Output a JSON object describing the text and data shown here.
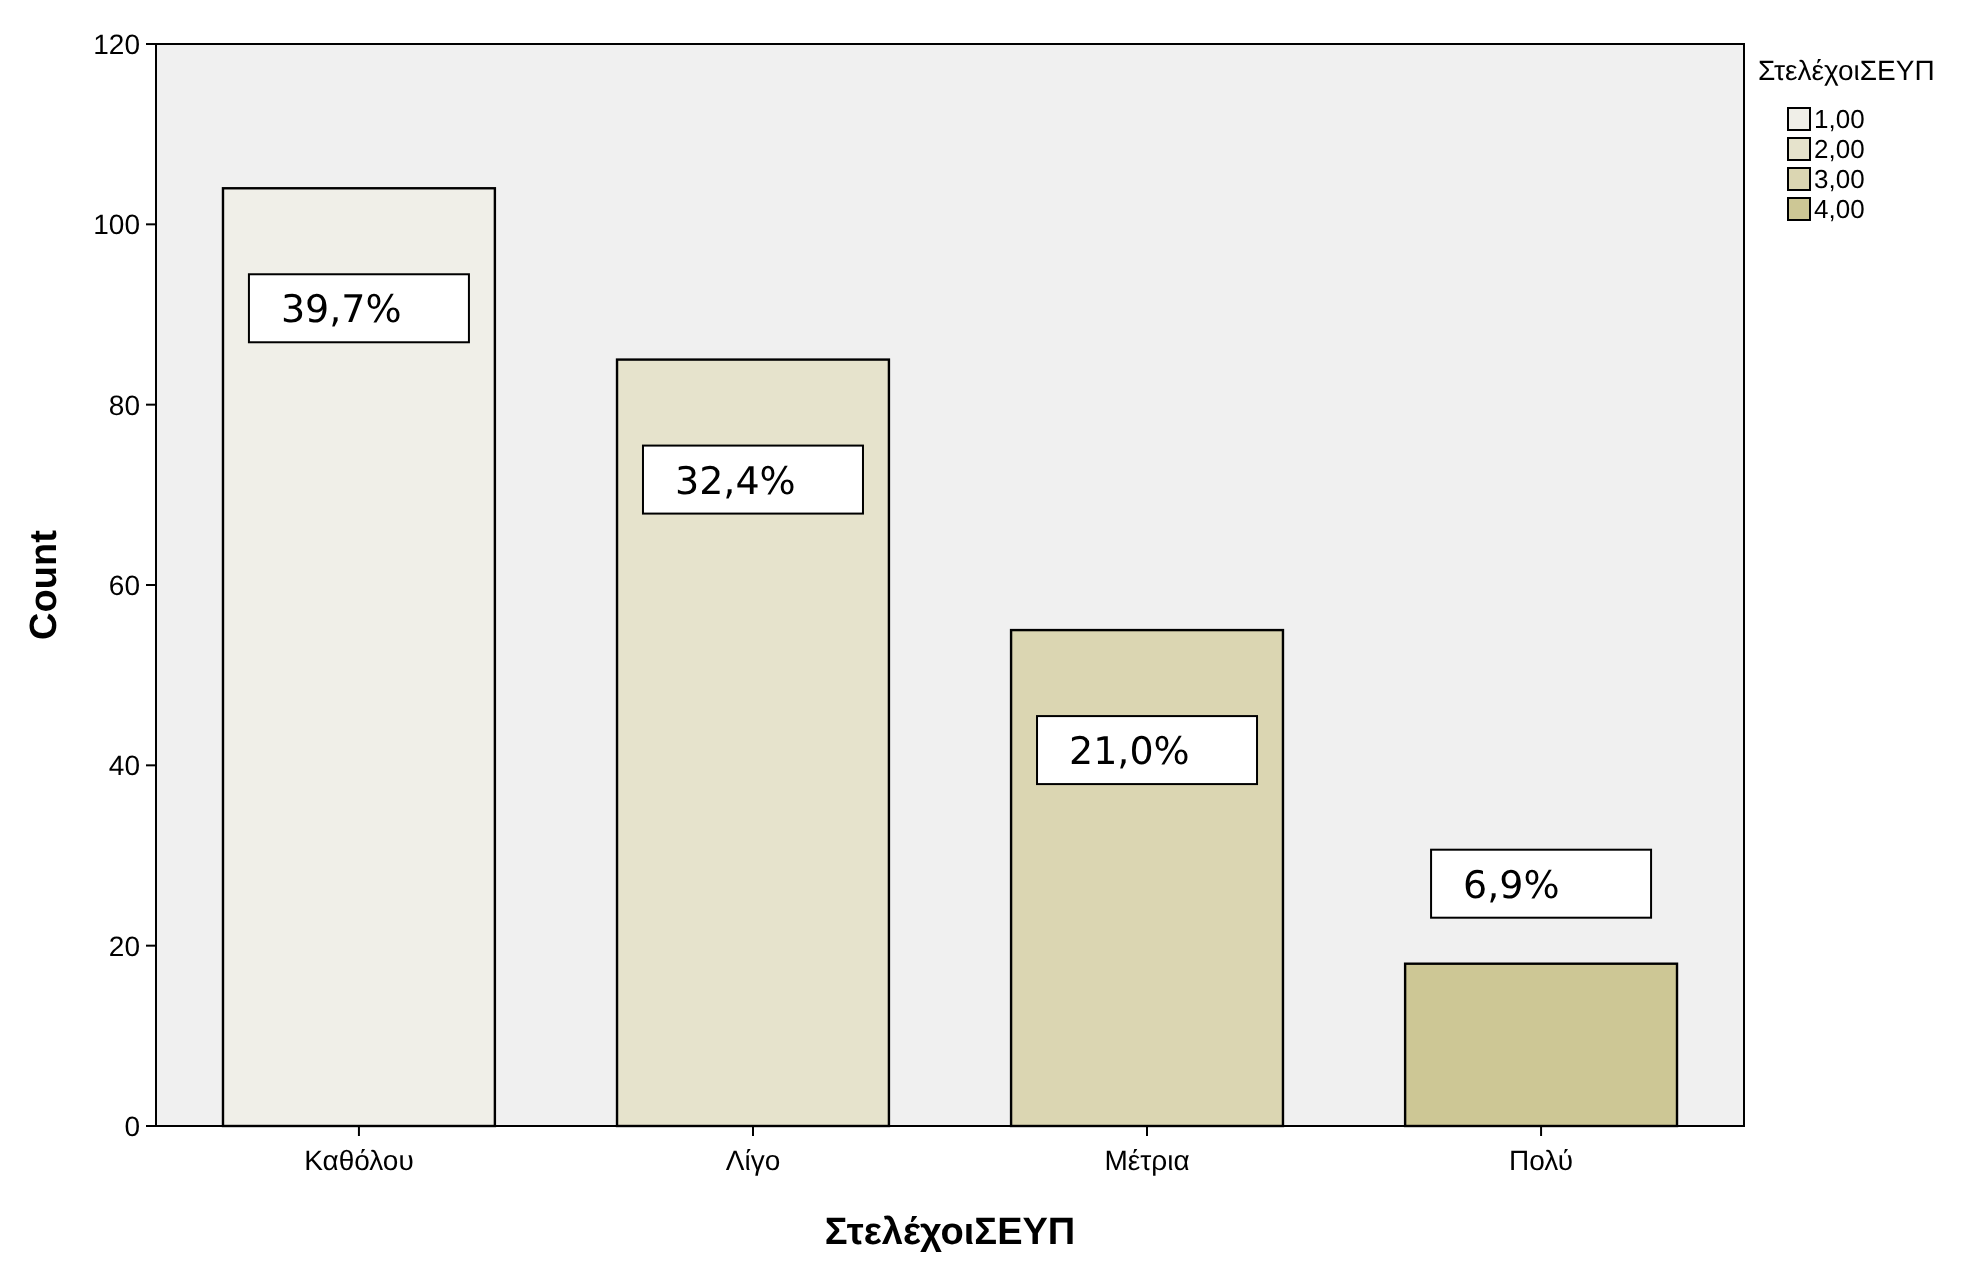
{
  "chart_data": {
    "type": "bar",
    "xlabel": "ΣτελέχοιΣΕΥΠ",
    "ylabel": "Count",
    "legend_title": "ΣτελέχοιΣΕΥΠ",
    "categories": [
      "Καθόλου",
      "Λίγο",
      "Μέτρια",
      "Πολύ"
    ],
    "series": [
      {
        "name": "1,00",
        "color": "#f0efe8",
        "values": [
          104,
          null,
          null,
          null
        ]
      },
      {
        "name": "2,00",
        "color": "#e6e3cc",
        "values": [
          null,
          85,
          null,
          null
        ]
      },
      {
        "name": "3,00",
        "color": "#dbd6b2",
        "values": [
          null,
          null,
          55,
          null
        ]
      },
      {
        "name": "4,00",
        "color": "#cdc795",
        "values": [
          null,
          null,
          null,
          18
        ]
      }
    ],
    "annotations": [
      "39,7%",
      "32,4%",
      "21,0%",
      "6,9%"
    ],
    "ylim": [
      0,
      120
    ],
    "yticks": [
      0,
      20,
      40,
      60,
      80,
      100,
      120
    ],
    "grid": false,
    "legend": "top right"
  }
}
